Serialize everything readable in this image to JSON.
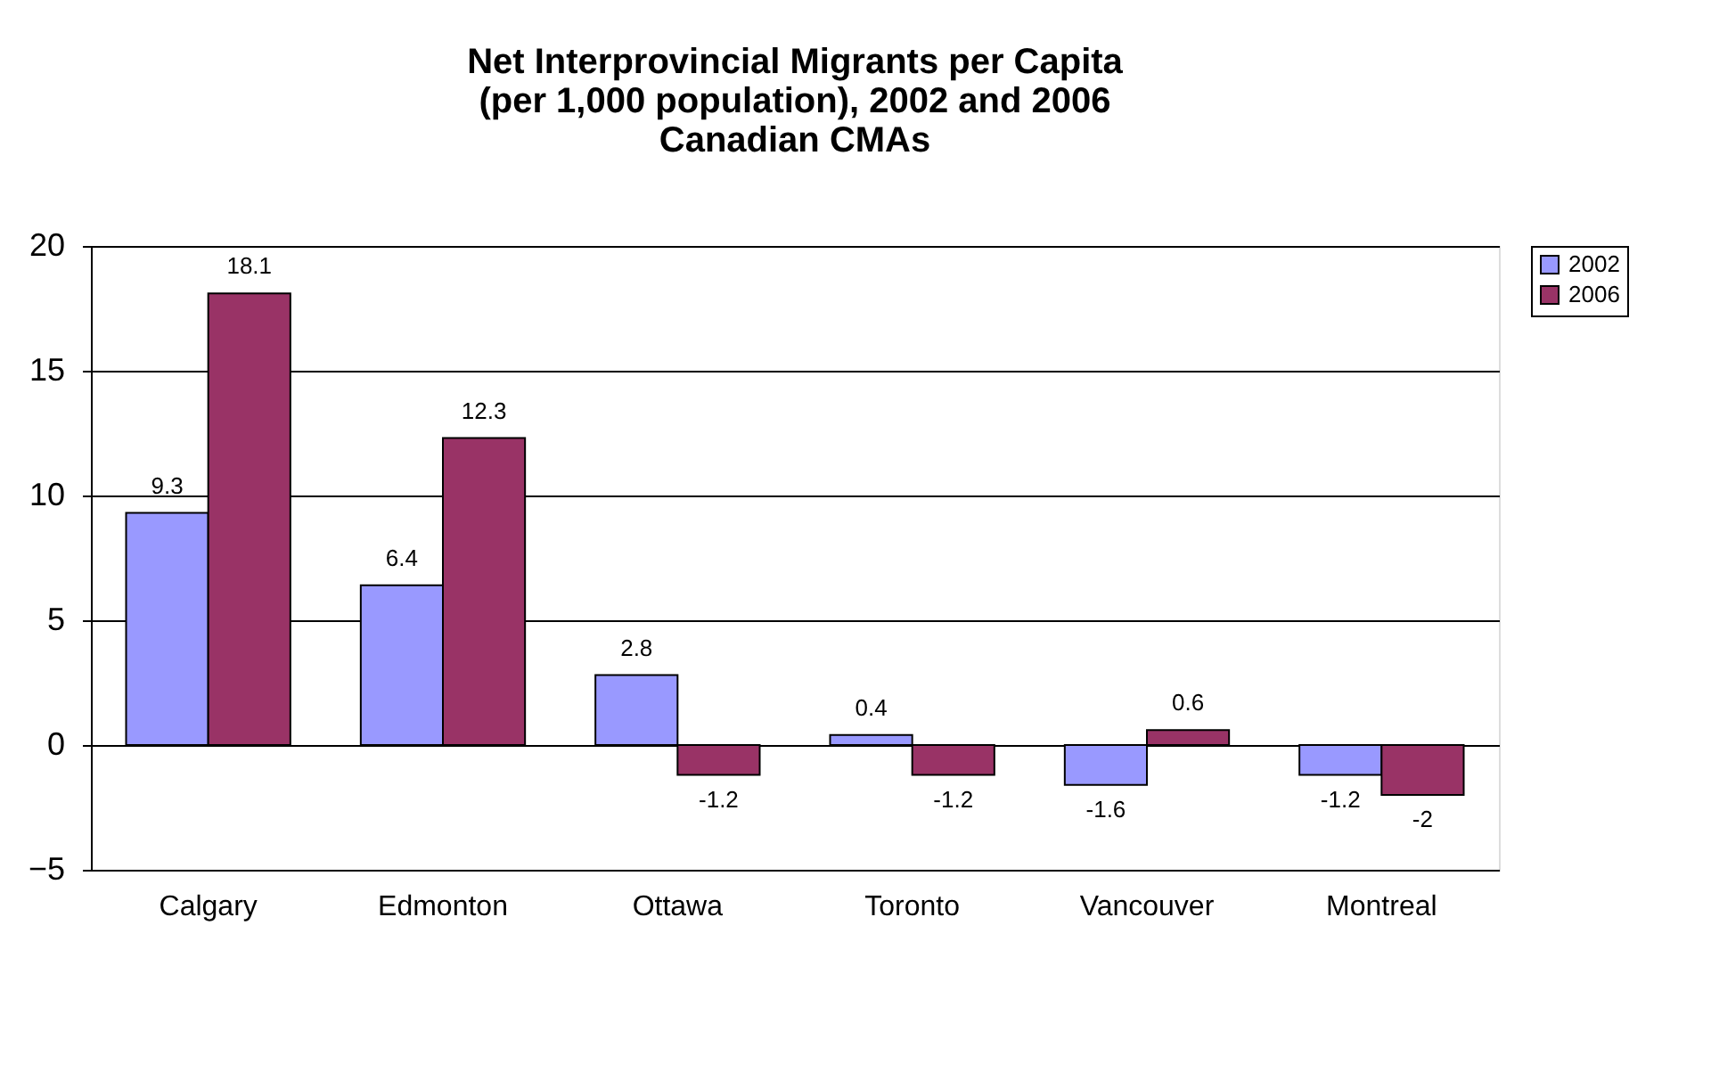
{
  "chart_data": {
    "type": "bar",
    "title": "Net Interprovincial Migrants per Capita\n(per 1,000 population), 2002 and 2006\nCanadian CMAs",
    "categories": [
      "Calgary",
      "Edmonton",
      "Ottawa",
      "Toronto",
      "Vancouver",
      "Montreal"
    ],
    "series": [
      {
        "name": "2002",
        "color": "#9999ff",
        "values": [
          9.3,
          6.4,
          2.8,
          0.4,
          -1.6,
          -1.2
        ]
      },
      {
        "name": "2006",
        "color": "#993366",
        "values": [
          18.1,
          12.3,
          -1.2,
          -1.2,
          0.6,
          -2
        ]
      }
    ],
    "ylim": [
      -5,
      20
    ],
    "yticks": [
      -5,
      0,
      5,
      10,
      15,
      20
    ],
    "grid": "y",
    "legend": "right",
    "data_labels": true
  }
}
